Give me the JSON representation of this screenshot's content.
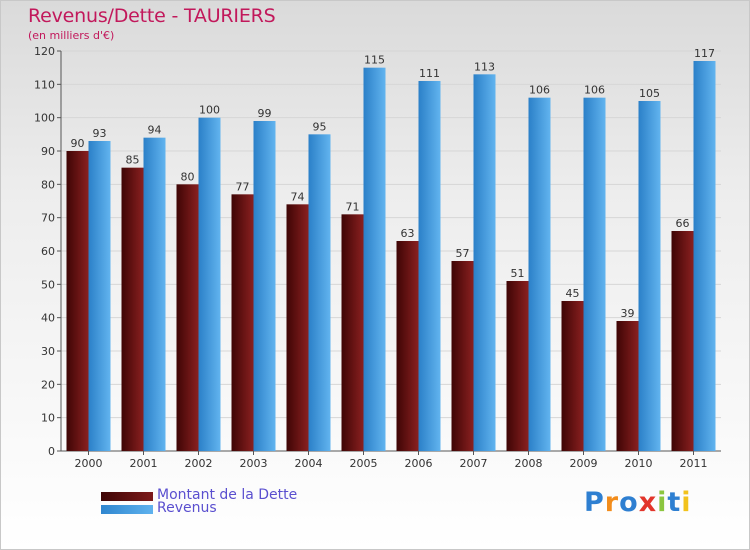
{
  "title": "Revenus/Dette - TAURIERS",
  "subtitle": "(en milliers d'€)",
  "logo_text": "Proxiti",
  "colors": {
    "title": "#c2185b",
    "debt": "#6b0d0d",
    "revenue": "#4aa3e6",
    "legend_text": "#5a4fcf",
    "grid": "#d6d6d6",
    "axis": "#555555"
  },
  "chart_data": {
    "type": "bar",
    "title": "Revenus/Dette - TAURIERS",
    "subtitle": "(en milliers d'€)",
    "xlabel": "",
    "ylabel": "",
    "ylim": [
      0,
      120
    ],
    "yticks": [
      0,
      10,
      20,
      30,
      40,
      50,
      60,
      70,
      80,
      90,
      100,
      110,
      120
    ],
    "grid": true,
    "legend_position": "bottom-left",
    "categories": [
      "2000",
      "2001",
      "2002",
      "2003",
      "2004",
      "2005",
      "2006",
      "2007",
      "2008",
      "2009",
      "2010",
      "2011"
    ],
    "series": [
      {
        "name": "Montant de la Dette",
        "color": "#6b0d0d",
        "values": [
          90,
          85,
          80,
          77,
          74,
          71,
          63,
          57,
          51,
          45,
          39,
          66
        ]
      },
      {
        "name": "Revenus",
        "color": "#4aa3e6",
        "values": [
          93,
          94,
          100,
          99,
          95,
          115,
          111,
          113,
          106,
          106,
          105,
          117
        ]
      }
    ]
  }
}
